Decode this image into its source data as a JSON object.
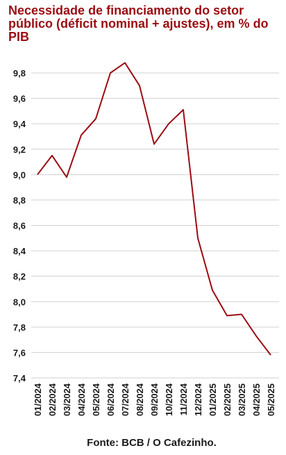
{
  "chart_data": {
    "type": "line",
    "title": "Necessidade de financiamento do setor público (déficit nominal + ajustes), em % do PIB",
    "source": "Fonte: BCB / O Cafezinho.",
    "categories": [
      "01/2024",
      "02/2024",
      "03/2024",
      "04/2024",
      "05/2024",
      "06/2024",
      "07/2024",
      "08/2024",
      "09/2024",
      "10/2024",
      "11/2024",
      "12/2024",
      "01/2025",
      "02/2025",
      "03/2025",
      "04/2025",
      "05/2025"
    ],
    "series": [
      {
        "values": [
          9.0,
          9.15,
          8.98,
          9.31,
          9.44,
          9.8,
          9.88,
          9.7,
          9.24,
          9.4,
          9.51,
          8.5,
          8.09,
          7.89,
          7.9,
          7.73,
          7.58
        ]
      }
    ],
    "yticks": [
      "9,8",
      "9,6",
      "9,4",
      "9,2",
      "9,0",
      "8,8",
      "8,6",
      "8,4",
      "8,2",
      "8,0",
      "7,8",
      "7,6",
      "7,4"
    ],
    "ylim": [
      7.4,
      9.8
    ],
    "grid": true,
    "line_color": "#9b0c12",
    "title_color": "#9b0c12"
  }
}
